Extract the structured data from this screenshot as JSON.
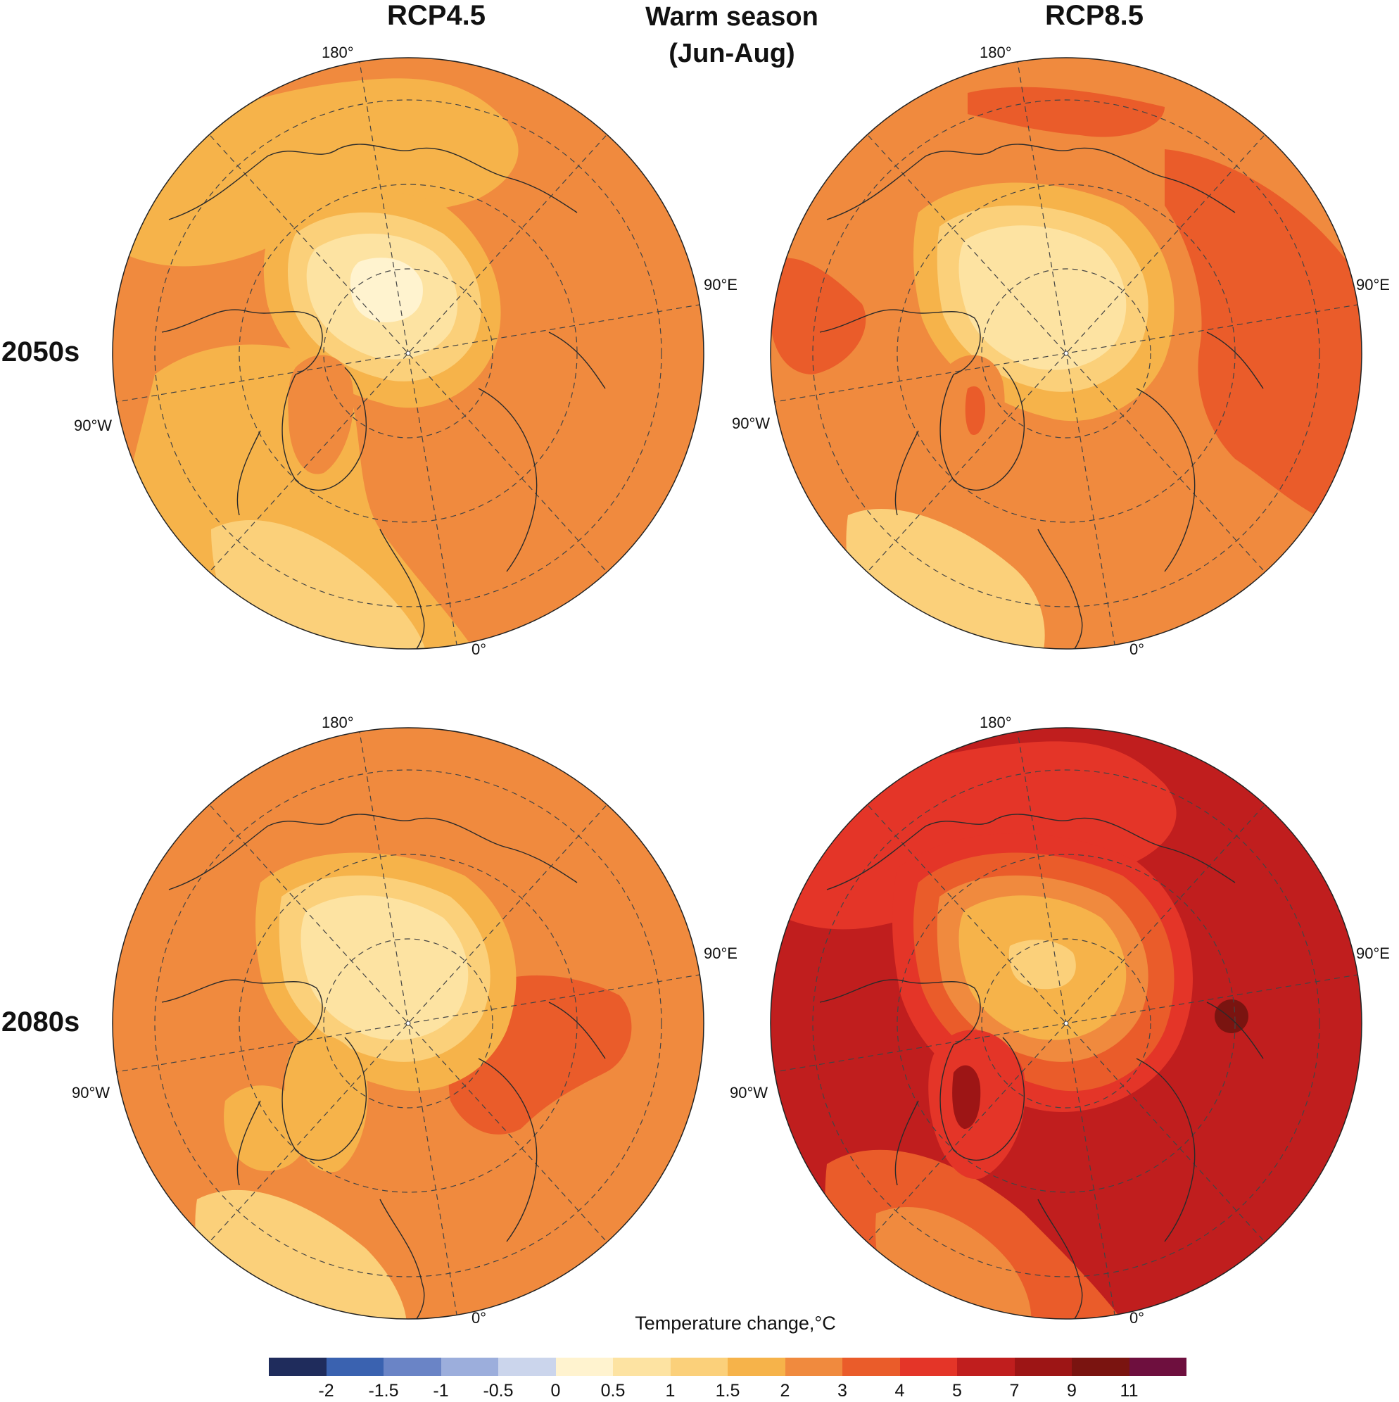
{
  "header": {
    "col_left": "RCP4.5",
    "col_right": "RCP8.5",
    "center_line1": "Warm season",
    "center_line2": "(Jun-Aug)"
  },
  "rows": {
    "row1": "2050s",
    "row2": "2080s"
  },
  "longitude_labels": {
    "top": "180°",
    "right": "90°E",
    "left": "90°W",
    "bottom": "0°"
  },
  "panels": [
    {
      "name": "2050s RCP4.5",
      "background": "#f08a3e",
      "rings": [
        "#f6b34a",
        "#fbd07a",
        "#fde3a2",
        "#fff3cf"
      ]
    },
    {
      "name": "2050s RCP8.5",
      "background": "#ea5c2a",
      "rings": [
        "#f08a3e",
        "#f6b34a",
        "#fbd07a",
        "#fde3a2"
      ]
    },
    {
      "name": "2080s RCP4.5",
      "background": "#f08a3e",
      "rings": [
        "#f6b34a",
        "#fbd07a",
        "#fde3a2",
        "#fde3a2"
      ]
    },
    {
      "name": "2080s RCP8.5",
      "background": "#c01e1e",
      "rings": [
        "#e43528",
        "#ea5c2a",
        "#f08a3e",
        "#f6b34a"
      ]
    }
  ],
  "legend": {
    "title": "Temperature change,°C",
    "colors": [
      "#1f2c5c",
      "#3a62b0",
      "#6a84c6",
      "#9caedc",
      "#cbd5ec",
      "#fff3cf",
      "#fde3a2",
      "#fbd07a",
      "#f6b34a",
      "#f08a3e",
      "#ea5c2a",
      "#e43528",
      "#c01e1e",
      "#9d1515",
      "#7a1410",
      "#6e0f3e"
    ],
    "ticks": [
      "-2",
      "-1.5",
      "-1",
      "-0.5",
      "0",
      "0.5",
      "1",
      "1.5",
      "2",
      "3",
      "4",
      "5",
      "7",
      "9",
      "11"
    ]
  }
}
